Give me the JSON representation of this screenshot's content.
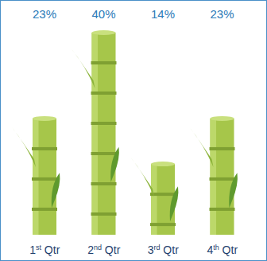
{
  "chart_data": {
    "type": "bar",
    "categories": [
      "1st Qtr",
      "2nd Qtr",
      "3rd Qtr",
      "4th Qtr"
    ],
    "values": [
      23,
      40,
      14,
      23
    ],
    "value_labels": [
      "23%",
      "40%",
      "14%",
      "23%"
    ],
    "color": "#a6c64a",
    "data_labels": true,
    "tick_labels": "x",
    "grid": false
  }
}
